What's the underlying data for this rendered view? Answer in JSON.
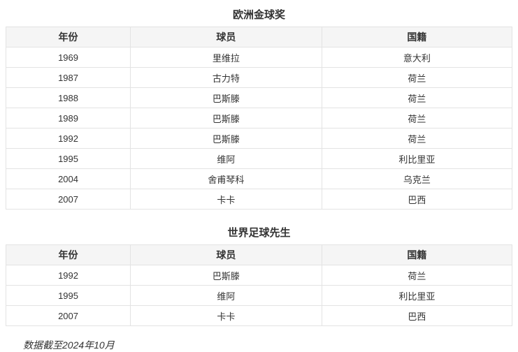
{
  "tables": [
    {
      "caption": "欧洲金球奖",
      "columns": [
        "年份",
        "球员",
        "国籍"
      ],
      "rows": [
        [
          "1969",
          "里维拉",
          "意大利"
        ],
        [
          "1987",
          "古力特",
          "荷兰"
        ],
        [
          "1988",
          "巴斯滕",
          "荷兰"
        ],
        [
          "1989",
          "巴斯滕",
          "荷兰"
        ],
        [
          "1992",
          "巴斯滕",
          "荷兰"
        ],
        [
          "1995",
          "维阿",
          "利比里亚"
        ],
        [
          "2004",
          "舍甫琴科",
          "乌克兰"
        ],
        [
          "2007",
          "卡卡",
          "巴西"
        ]
      ]
    },
    {
      "caption": "世界足球先生",
      "columns": [
        "年份",
        "球员",
        "国籍"
      ],
      "rows": [
        [
          "1992",
          "巴斯滕",
          "荷兰"
        ],
        [
          "1995",
          "维阿",
          "利比里亚"
        ],
        [
          "2007",
          "卡卡",
          "巴西"
        ]
      ]
    }
  ],
  "footer": {
    "note": "数据截至2024年10月"
  },
  "colors": {
    "header_bg": "#f5f5f5",
    "border": "#e3e3e3",
    "text": "#333333"
  }
}
